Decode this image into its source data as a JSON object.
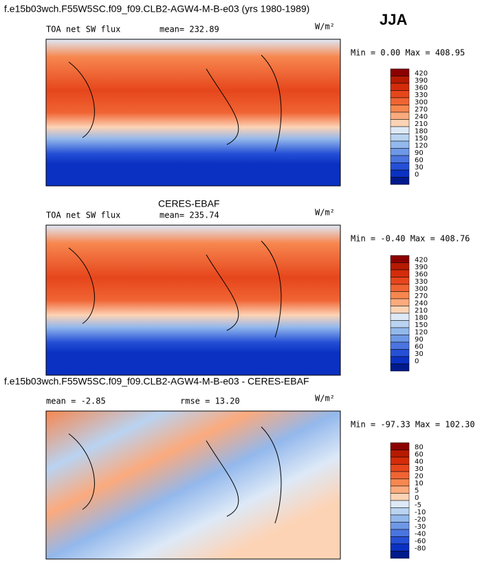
{
  "header": {
    "title": "f.e15b03wch.F55W5SC.f09_f09.CLB2-AGW4-M-B-e03 (yrs 1980-1989)",
    "season": "JJA"
  },
  "panels": [
    {
      "field": "TOA net SW flux",
      "stat1": "mean= 232.89",
      "units": "W/m²",
      "minmax": "Min =   0.00 Max = 408.95",
      "levels": [
        "420",
        "390",
        "360",
        "330",
        "300",
        "270",
        "240",
        "210",
        "180",
        "150",
        "120",
        "90",
        "60",
        "30",
        "0"
      ],
      "colors": [
        "#8b0000",
        "#b51a00",
        "#d42c0a",
        "#e6461c",
        "#f06433",
        "#f7874f",
        "#fbaa7d",
        "#fdd3b5",
        "#dde9f7",
        "#b9d3f1",
        "#93b8ec",
        "#6e98e6",
        "#4a74df",
        "#2550d6",
        "#0a31c2",
        "#001a8c"
      ]
    },
    {
      "title": "CERES-EBAF",
      "field": "TOA net SW flux",
      "stat1": "mean= 235.74",
      "units": "W/m²",
      "minmax": "Min =  -0.40 Max = 408.76",
      "levels": [
        "420",
        "390",
        "360",
        "330",
        "300",
        "270",
        "240",
        "210",
        "180",
        "150",
        "120",
        "90",
        "60",
        "30",
        "0"
      ],
      "colors": [
        "#8b0000",
        "#b51a00",
        "#d42c0a",
        "#e6461c",
        "#f06433",
        "#f7874f",
        "#fbaa7d",
        "#fdd3b5",
        "#dde9f7",
        "#b9d3f1",
        "#93b8ec",
        "#6e98e6",
        "#4a74df",
        "#2550d6",
        "#0a31c2",
        "#001a8c"
      ]
    },
    {
      "title": "f.e15b03wch.F55W5SC.f09_f09.CLB2-AGW4-M-B-e03 - CERES-EBAF",
      "stat1": "mean =   -2.85",
      "stat2": "rmse =   13.20",
      "units": "W/m²",
      "minmax": "Min = -97.33 Max = 102.30",
      "levels": [
        "80",
        "60",
        "40",
        "30",
        "20",
        "10",
        "5",
        "0",
        "-5",
        "-10",
        "-20",
        "-30",
        "-40",
        "-60",
        "-80"
      ],
      "colors": [
        "#8b0000",
        "#b51a00",
        "#d42c0a",
        "#e6461c",
        "#f06433",
        "#f7874f",
        "#fbaa7d",
        "#fdd3b5",
        "#dde9f7",
        "#b9d3f1",
        "#93b8ec",
        "#6e98e6",
        "#4a74df",
        "#2550d6",
        "#0a31c2",
        "#001a8c"
      ]
    }
  ]
}
